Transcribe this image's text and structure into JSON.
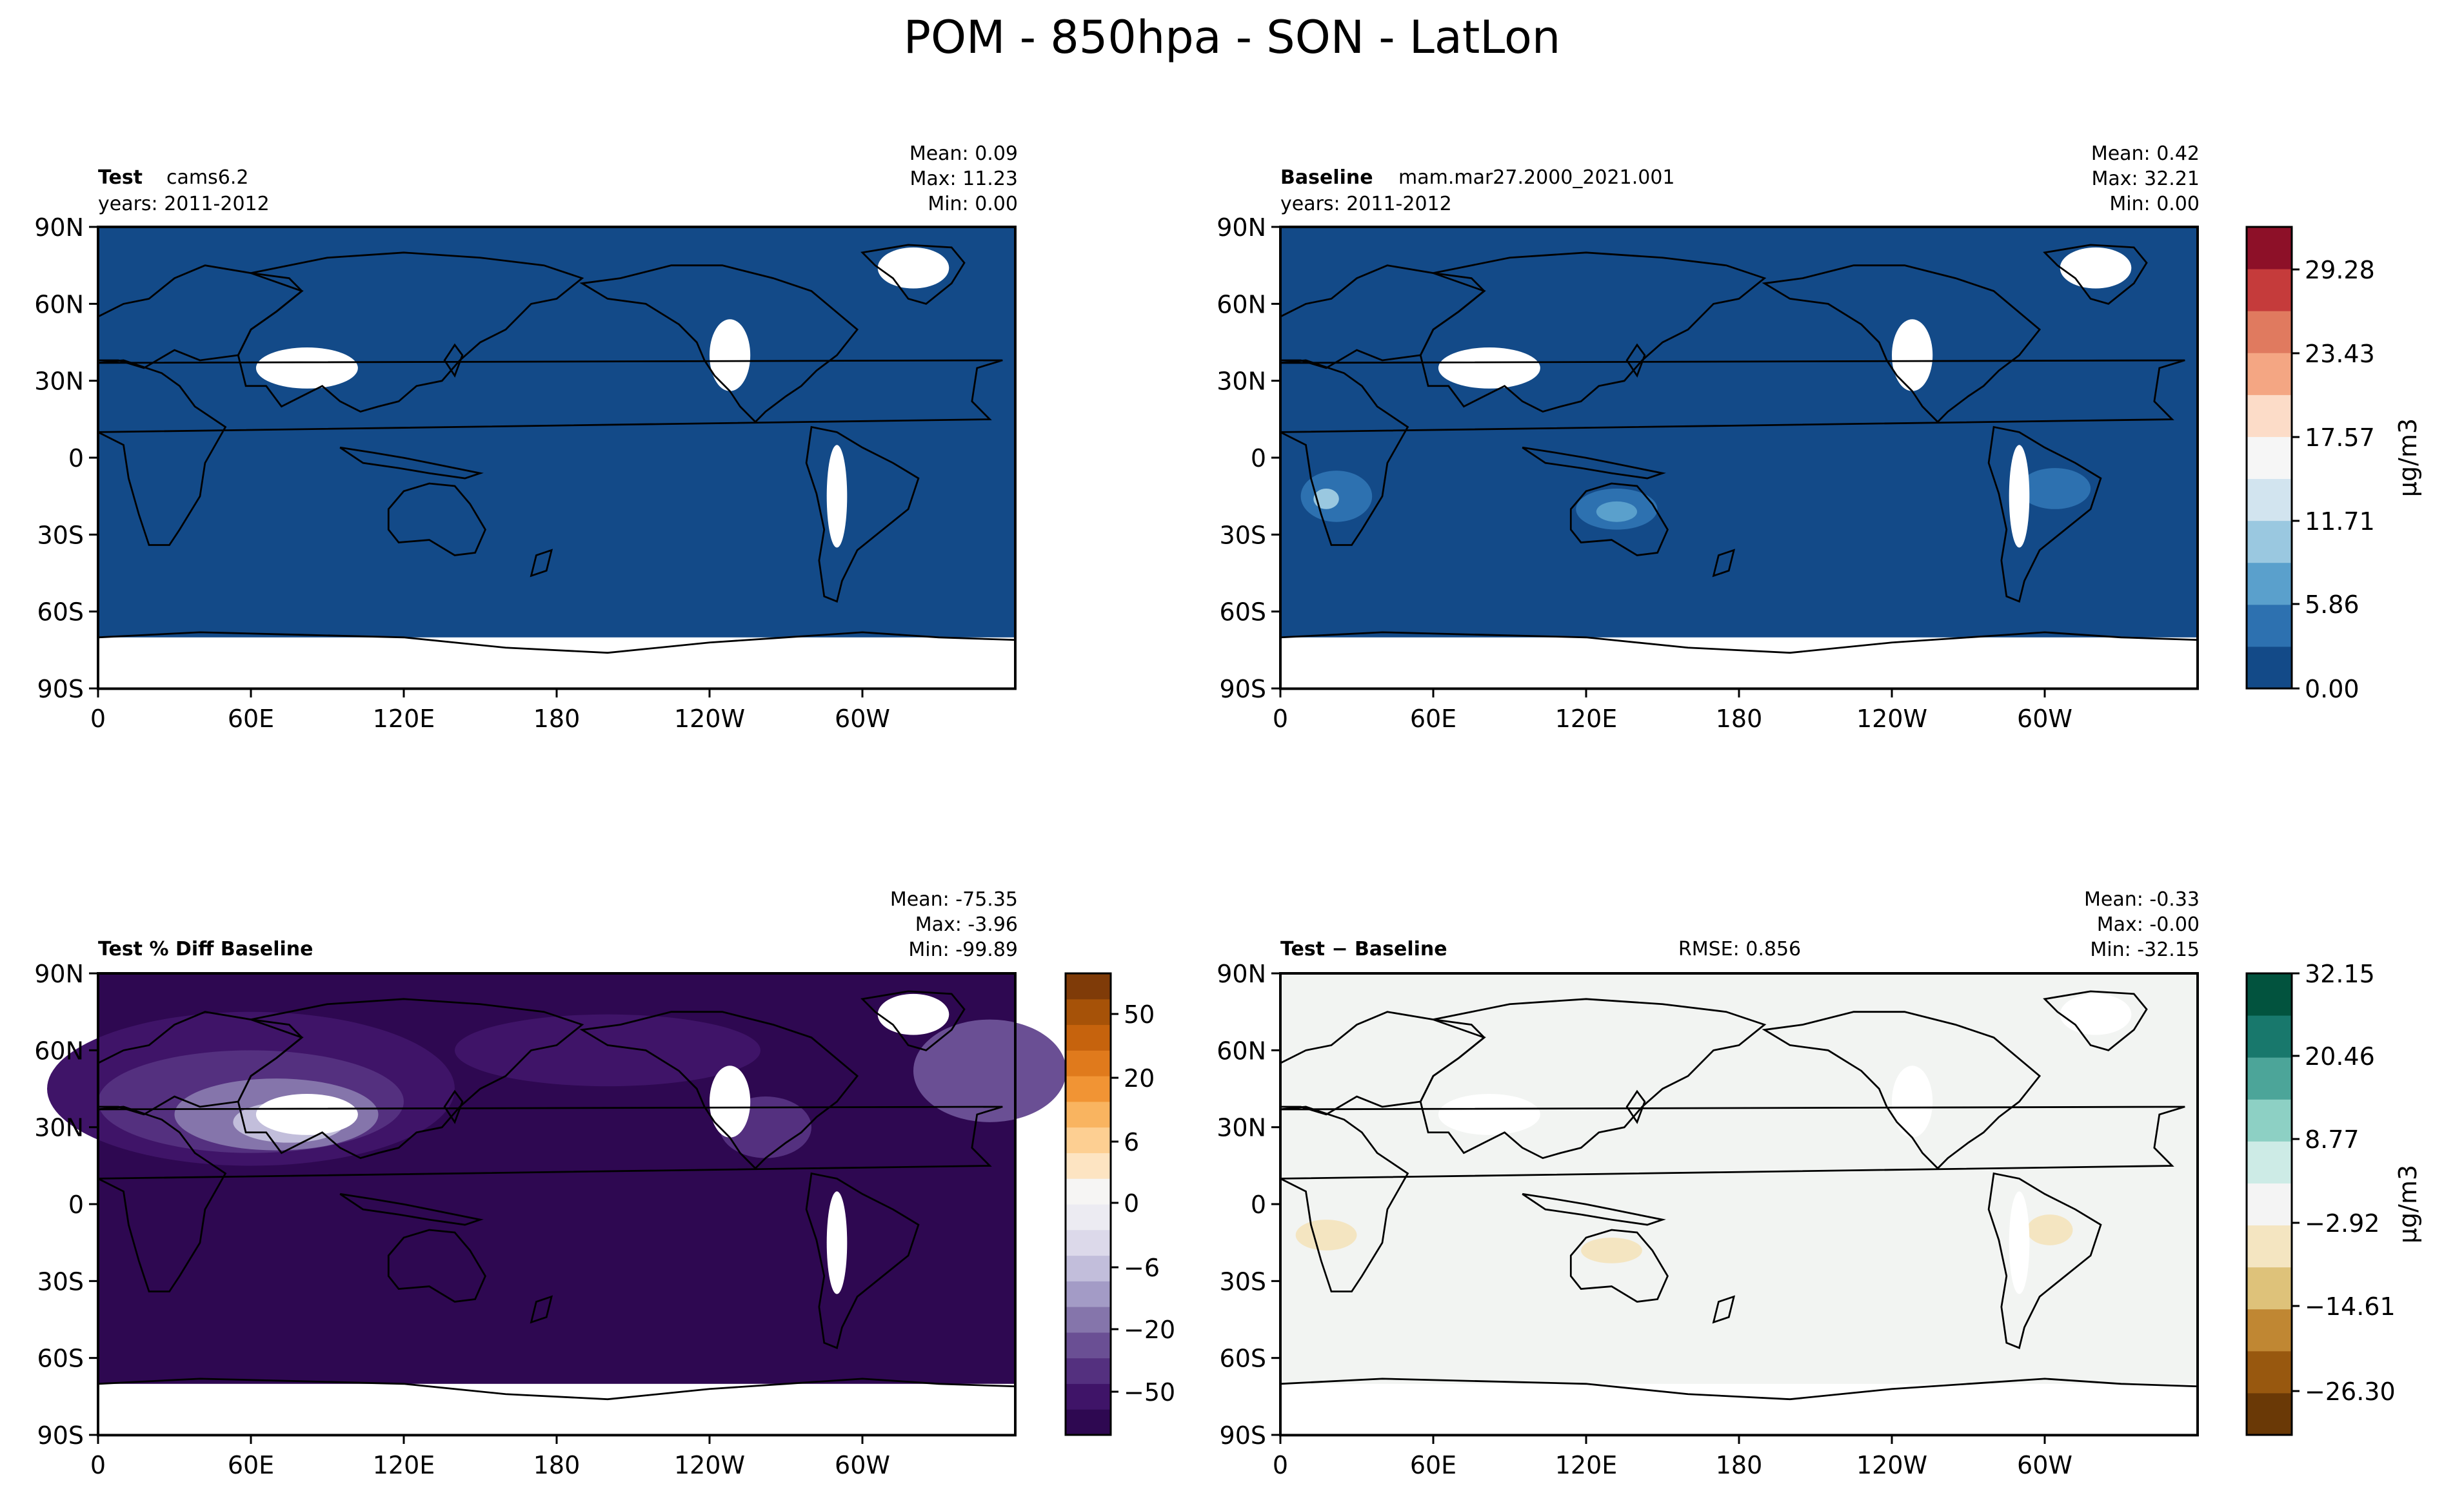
{
  "figure_title": "POM - 850hpa - SON - LatLon",
  "lat_ticks": [
    "90N",
    "60N",
    "30N",
    "0",
    "30S",
    "60S",
    "90S"
  ],
  "lon_ticks": [
    "0",
    "60E",
    "120E",
    "180",
    "120W",
    "60W"
  ],
  "chart_data": [
    {
      "type": "heatmap",
      "name": "test",
      "label_bold": "Test",
      "label_text": "cams6.2",
      "years": "years: 2011-2012",
      "stats": {
        "mean": "Mean:  0.09",
        "max": "Max: 11.23",
        "min": "Min:  0.00"
      },
      "mean": 0.09,
      "max": 11.23,
      "min": 0.0,
      "xlim": [
        0,
        360
      ],
      "ylim": [
        -90,
        90
      ],
      "fill_color": "#134a88"
    },
    {
      "type": "heatmap",
      "name": "baseline",
      "label_bold": "Baseline",
      "label_text": "mam.mar27.2000_2021.001",
      "years": "years: 2011-2012",
      "stats": {
        "mean": "Mean:  0.42",
        "max": "Max: 32.21",
        "min": "Min:  0.00"
      },
      "mean": 0.42,
      "max": 32.21,
      "min": 0.0,
      "xlim": [
        0,
        360
      ],
      "ylim": [
        -90,
        90
      ],
      "fill_color": "#134a88"
    },
    {
      "type": "heatmap",
      "name": "pct-diff",
      "label_bold": "Test % Diff Baseline",
      "stats": {
        "mean": "Mean: -75.35",
        "max": "Max: -3.96",
        "min": "Min: -99.89"
      },
      "mean": -75.35,
      "max": -3.96,
      "min": -99.89,
      "xlim": [
        0,
        360
      ],
      "ylim": [
        -90,
        90
      ],
      "fill_color": "#2e0851"
    },
    {
      "type": "heatmap",
      "name": "abs-diff",
      "label_bold": "Test − Baseline",
      "rmse": "RMSE: 0.856",
      "stats": {
        "mean": "Mean: -0.33",
        "max": "Max: -0.00",
        "min": "Min: -32.15"
      },
      "mean": -0.33,
      "max": -0.0,
      "min": -32.15,
      "xlim": [
        0,
        360
      ],
      "ylim": [
        -90,
        90
      ],
      "fill_color": "#f2f4f2"
    }
  ],
  "colorbars": {
    "main": {
      "unit": "μg/m3",
      "ticks": [
        "0.00",
        "5.86",
        "11.71",
        "17.57",
        "23.43",
        "29.28"
      ],
      "colors": [
        "#134a88",
        "#2d71b0",
        "#5aa0cc",
        "#9ac8e0",
        "#d2e4ef",
        "#f6f6f6",
        "#fcdcc8",
        "#f4a683",
        "#e07a5f",
        "#c53b3b",
        "#8d1028"
      ]
    },
    "pct": {
      "unit": "",
      "ticks": [
        "50",
        "20",
        "6",
        "0",
        "−6",
        "−20",
        "−50"
      ],
      "colors": [
        "#2e0851",
        "#3f1468",
        "#54307f",
        "#6a4f94",
        "#8575ab",
        "#a39bc6",
        "#c2bedb",
        "#dcd9ea",
        "#ecebf2",
        "#f6f5f4",
        "#fde4c2",
        "#fdcf92",
        "#f9b460",
        "#f19434",
        "#e07a1c",
        "#c6630d",
        "#a65208",
        "#7f3b08"
      ]
    },
    "diff": {
      "unit": "μg/m3",
      "ticks": [
        "32.15",
        "20.46",
        "8.77",
        "−2.92",
        "−14.61",
        "−26.30"
      ],
      "colors": [
        "#6a3906",
        "#98580f",
        "#c08733",
        "#dec27a",
        "#f4e5c1",
        "#f4f4f4",
        "#cdebe6",
        "#8dd0c4",
        "#4ca599",
        "#18786c",
        "#02533e"
      ]
    }
  }
}
